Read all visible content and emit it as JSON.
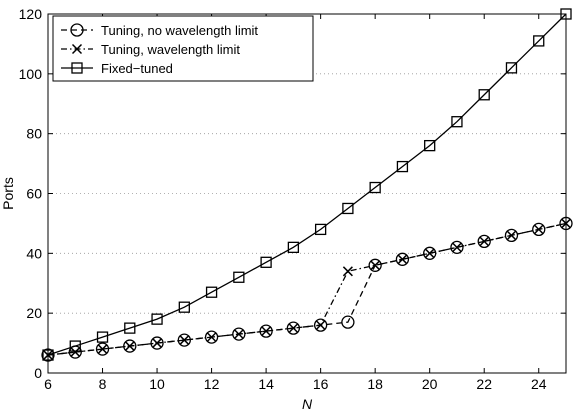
{
  "chart_data": {
    "type": "line",
    "title": "",
    "xlabel": "N",
    "ylabel": "Ports",
    "xlim": [
      6,
      25
    ],
    "ylim": [
      0,
      120
    ],
    "xticks": [
      6,
      8,
      10,
      12,
      14,
      16,
      18,
      20,
      22,
      24
    ],
    "yticks": [
      0,
      20,
      40,
      60,
      80,
      100,
      120
    ],
    "grid": "dotted horizontal",
    "legend_position": "top-left",
    "series": [
      {
        "name": "Tuning, no wavelength limit",
        "marker": "circle",
        "line": "dashed",
        "x": [
          6,
          7,
          8,
          9,
          10,
          11,
          12,
          13,
          14,
          15,
          16,
          17,
          18,
          19,
          20,
          21,
          22,
          23,
          24,
          25
        ],
        "values": [
          6,
          7,
          8,
          9,
          10,
          11,
          12,
          13,
          14,
          15,
          16,
          17,
          36,
          38,
          40,
          42,
          44,
          46,
          48,
          50
        ]
      },
      {
        "name": "Tuning, wavelength limit",
        "marker": "x",
        "line": "dash-dot",
        "x": [
          6,
          7,
          8,
          9,
          10,
          11,
          12,
          13,
          14,
          15,
          16,
          17,
          18,
          19,
          20,
          21,
          22,
          23,
          24,
          25
        ],
        "values": [
          6,
          7,
          8,
          9,
          10,
          11,
          12,
          13,
          14,
          15,
          16,
          34,
          36,
          38,
          40,
          42,
          44,
          46,
          48,
          50
        ]
      },
      {
        "name": "Fixed−tuned",
        "marker": "square",
        "line": "solid",
        "x": [
          6,
          7,
          8,
          9,
          10,
          11,
          12,
          13,
          14,
          15,
          16,
          17,
          18,
          19,
          20,
          21,
          22,
          23,
          24,
          25
        ],
        "values": [
          6,
          9,
          12,
          15,
          18,
          22,
          27,
          32,
          37,
          42,
          48,
          55,
          62,
          69,
          76,
          84,
          93,
          102,
          111,
          120
        ]
      }
    ]
  }
}
